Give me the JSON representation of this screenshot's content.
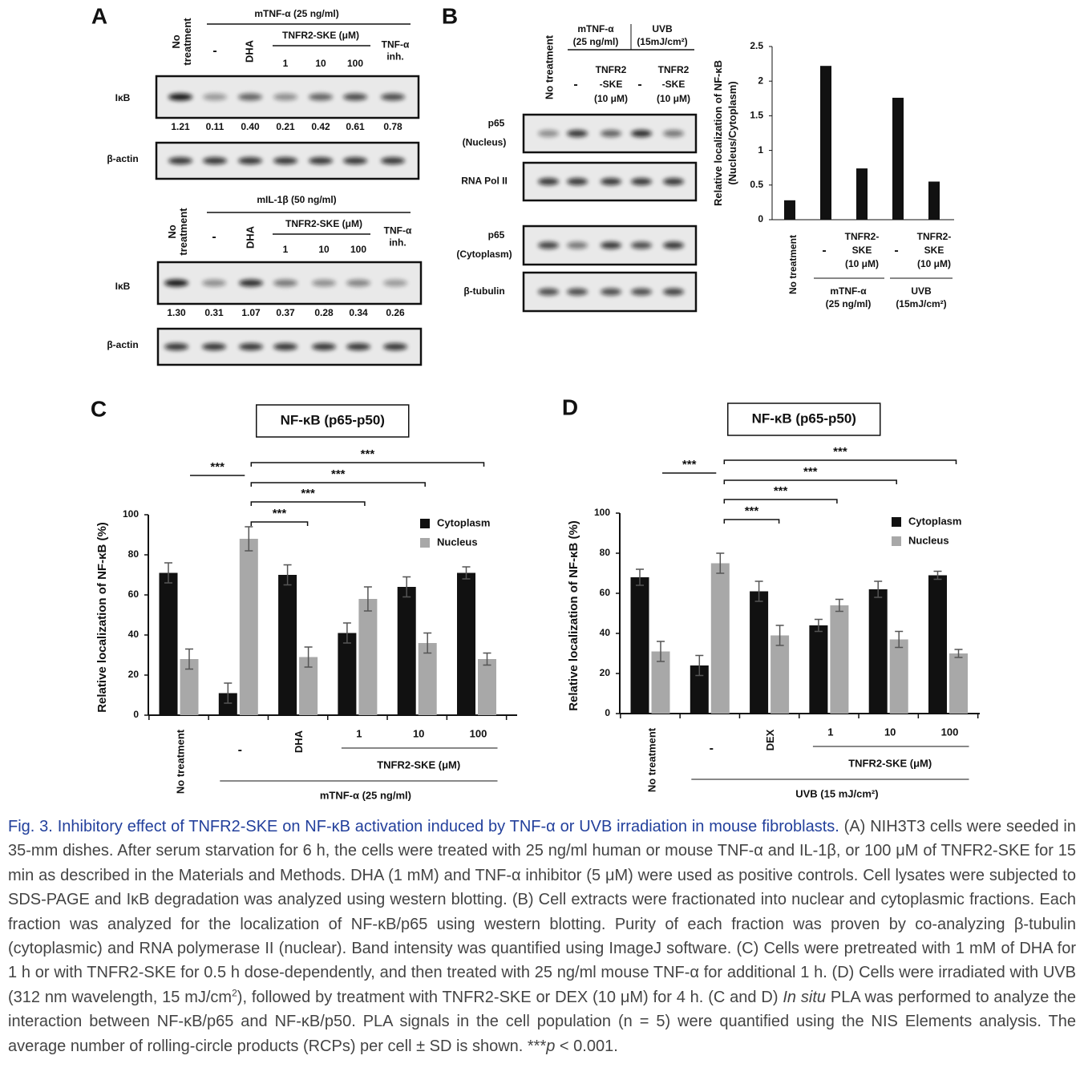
{
  "panel_a": {
    "label": "A",
    "blots": [
      {
        "header": "mTNF-α (25 ng/ml)",
        "no_treatment": "No\ntreatment",
        "vehicle": "-",
        "control": "DHA",
        "dose_header": "TNFR2-SKE (μM)",
        "doses": [
          "1",
          "10",
          "100"
        ],
        "inhibitor": "TNF-α\ninh.",
        "rows": [
          "IκB",
          "β-actin"
        ],
        "intensities": [
          "1.21",
          "0.11",
          "0.40",
          "0.21",
          "0.42",
          "0.61",
          "0.78"
        ]
      },
      {
        "header": "mIL-1β (50 ng/ml)",
        "no_treatment": "No\ntreatment",
        "vehicle": "-",
        "control": "DHA",
        "dose_header": "TNFR2-SKE (μM)",
        "doses": [
          "1",
          "10",
          "100"
        ],
        "inhibitor": "TNF-α\ninh.",
        "rows": [
          "IκB",
          "β-actin"
        ],
        "intensities": [
          "1.30",
          "0.31",
          "1.07",
          "0.37",
          "0.28",
          "0.34",
          "0.26"
        ]
      }
    ]
  },
  "panel_b": {
    "label": "B",
    "no_treatment": "No treatment",
    "groups": [
      {
        "header": "mTNF-α\n(25 ng/ml)",
        "vehicle": "-",
        "treatment": "TNFR2\n-SKE\n(10 μM)"
      },
      {
        "header": "UVB\n(15mJ/cm²)",
        "vehicle": "-",
        "treatment": "TNFR2\n-SKE\n(10 μM)"
      }
    ],
    "rows": [
      {
        "label": "p65",
        "sublabel": "(Nucleus)"
      },
      {
        "label": "RNA Pol II"
      },
      {
        "label": "p65",
        "sublabel": "(Cytoplasm)"
      },
      {
        "label": "β-tubulin"
      }
    ]
  },
  "chart_data": [
    {
      "type": "bar",
      "ylabel": "Relative localization of NF-κB\n(Nucleus/Cytoplasm)",
      "categories": [
        "No treatment",
        "-",
        "TNFR2-\nSKE\n(10 μM)",
        "-",
        "TNFR2-\nSKE\n(10 μM)"
      ],
      "groups": [
        "mTNF-α\n(25 ng/ml)",
        "UVB\n(15mJ/cm²)"
      ],
      "values": [
        0.28,
        2.22,
        0.74,
        1.76,
        0.55
      ],
      "color": "#111111",
      "ylim": [
        0,
        2.5
      ],
      "yticks": [
        0,
        0.5,
        1,
        1.5,
        2,
        2.5
      ]
    },
    {
      "type": "grouped-bar",
      "panel_label": "C",
      "title": "NF-κB (p65-p50)",
      "ylabel": "Relative localization of NF-κB (%)",
      "categories": [
        "No treatment",
        "-",
        "DHA",
        "1",
        "10",
        "100"
      ],
      "dose_label": "TNFR2-SKE (μM)",
      "stimulus_label": "mTNF-α (25 ng/ml)",
      "series": [
        {
          "name": "Cytoplasm",
          "color": "#111111",
          "values": [
            71,
            11,
            70,
            41,
            64,
            71
          ],
          "errors": [
            5,
            5,
            5,
            5,
            5,
            3
          ]
        },
        {
          "name": "Nucleus",
          "color": "#a8a8a8",
          "values": [
            28,
            88,
            29,
            58,
            36,
            28
          ],
          "errors": [
            5,
            6,
            5,
            6,
            5,
            3
          ]
        }
      ],
      "ylim": [
        0,
        100
      ],
      "yticks": [
        0,
        20,
        40,
        60,
        80,
        100
      ],
      "significance": [
        "***",
        "***",
        "***",
        "***",
        "***"
      ]
    },
    {
      "type": "grouped-bar",
      "panel_label": "D",
      "title": "NF-κB (p65-p50)",
      "ylabel": "Relative localization of NF-κB (%)",
      "categories": [
        "No treatment",
        "-",
        "DEX",
        "1",
        "10",
        "100"
      ],
      "dose_label": "TNFR2-SKE (μM)",
      "stimulus_label": "UVB (15 mJ/cm²)",
      "series": [
        {
          "name": "Cytoplasm",
          "color": "#111111",
          "values": [
            68,
            24,
            61,
            44,
            62,
            69
          ],
          "errors": [
            4,
            5,
            5,
            3,
            4,
            2
          ]
        },
        {
          "name": "Nucleus",
          "color": "#a8a8a8",
          "values": [
            31,
            75,
            39,
            54,
            37,
            30
          ],
          "errors": [
            5,
            5,
            5,
            3,
            4,
            2
          ]
        }
      ],
      "ylim": [
        0,
        100
      ],
      "yticks": [
        0,
        20,
        40,
        60,
        80,
        100
      ],
      "significance": [
        "***",
        "***",
        "***",
        "***",
        "***"
      ]
    }
  ],
  "caption": {
    "title": "Fig. 3. Inhibitory effect of TNFR2-SKE on NF-κB activation induced by TNF-α or UVB irradiation in mouse fibroblasts.",
    "text_1": " (A) NIH3T3 cells were seeded in 35-mm dishes. After serum starvation for 6 h, the cells were treated with 25 ng/ml human or mouse TNF-α and IL-1β, or 100 μM of TNFR2-SKE for 15 min as described in the Materials and Methods. DHA (1 mM) and TNF-α inhibitor (5 μM) were used as positive controls. Cell lysates were subjected to SDS-PAGE and IκB degradation was analyzed using western blotting. (B) Cell extracts were fractionated into nuclear and cytoplasmic fractions. Each fraction was analyzed for the localization of NF-κB/p65 using western blotting. Purity of each fraction was proven by co-analyzing β-tubulin (cytoplasmic) and RNA polymerase II (nuclear). Band intensity was quantified using ImageJ software. (C) Cells were pretreated with 1 mM of DHA for 1 h or with TNFR2-SKE for 0.5 h dose-dependently, and then treated with 25 ng/ml mouse TNF-α for additional 1 h. (D) Cells were irradiated with UVB (312 nm wavelength, 15 mJ/cm",
    "superscript": "2",
    "text_2": "), followed by treatment with TNFR2-SKE or DEX (10 μM) for 4 h. (C and D) ",
    "italic_1": "In situ",
    "text_3": " PLA was performed to analyze the interaction between NF-κB/p65 and NF-κB/p50. PLA signals in the cell population (n = 5) were quantified using the NIS Elements analysis. The average number of rolling-circle products (RCPs) per cell ± SD is shown. ***",
    "italic_2": "p",
    "text_4": " < 0.001."
  }
}
